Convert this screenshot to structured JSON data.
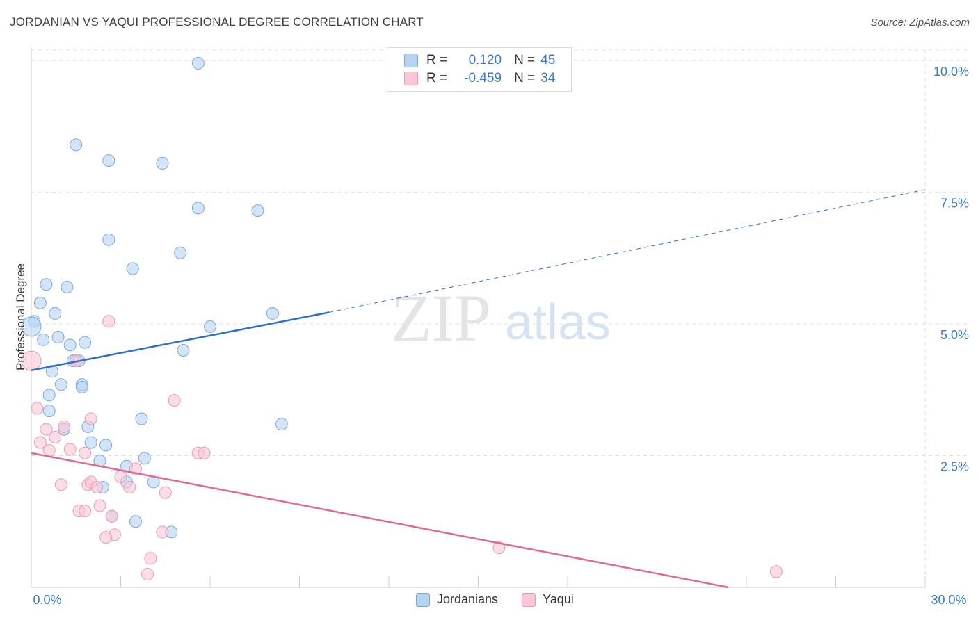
{
  "header": {
    "title": "JORDANIAN VS YAQUI PROFESSIONAL DEGREE CORRELATION CHART",
    "source": "Source: ZipAtlas.com"
  },
  "watermark": {
    "zip": "ZIP",
    "atlas": "atlas"
  },
  "legend_top": {
    "rows": [
      {
        "r_label": "R =",
        "r_value": "0.120",
        "n_label": "N =",
        "n_value": "45"
      },
      {
        "r_label": "R =",
        "r_value": "-0.459",
        "n_label": "N =",
        "n_value": "34"
      }
    ]
  },
  "legend_bottom": {
    "items": [
      "Jordanians",
      "Yaqui"
    ]
  },
  "colors": {
    "jordanian_fill": "#b8d2f1",
    "jordanian_stroke": "#7aa7dd",
    "jordanian_line": "#2f6fca",
    "yaqui_fill": "#f8c6d6",
    "yaqui_stroke": "#eb98b3",
    "yaqui_line": "#e06994",
    "tick_label": "#3a78c9",
    "grid": "#dddddd"
  },
  "chart_data": {
    "type": "scatter",
    "title": "JORDANIAN VS YAQUI PROFESSIONAL DEGREE CORRELATION CHART",
    "xlabel": "",
    "ylabel": "Professional Degree",
    "xlim": [
      0,
      30
    ],
    "ylim": [
      0,
      10.2
    ],
    "x_tick_labels": [
      "0.0%",
      "30.0%"
    ],
    "y_ticks": [
      2.5,
      5.0,
      7.5,
      10.0
    ],
    "y_tick_labels": [
      "2.5%",
      "5.0%",
      "7.5%",
      "10.0%"
    ],
    "grid": true,
    "series": [
      {
        "name": "Jordanians",
        "points": [
          [
            5.6,
            9.95
          ],
          [
            1.5,
            8.4
          ],
          [
            2.6,
            8.1
          ],
          [
            4.4,
            8.05
          ],
          [
            5.6,
            7.2
          ],
          [
            7.6,
            7.15
          ],
          [
            2.6,
            6.6
          ],
          [
            5.0,
            6.35
          ],
          [
            3.4,
            6.05
          ],
          [
            0.5,
            5.75
          ],
          [
            1.2,
            5.7
          ],
          [
            0.3,
            5.4
          ],
          [
            0.8,
            5.2
          ],
          [
            8.1,
            5.2
          ],
          [
            0.1,
            5.05
          ],
          [
            6.0,
            4.95
          ],
          [
            0.9,
            4.75
          ],
          [
            0.4,
            4.7
          ],
          [
            1.8,
            4.65
          ],
          [
            1.3,
            4.6
          ],
          [
            5.1,
            4.5
          ],
          [
            1.4,
            4.3
          ],
          [
            1.6,
            4.3
          ],
          [
            0.7,
            4.1
          ],
          [
            1.0,
            3.85
          ],
          [
            1.7,
            3.85
          ],
          [
            1.7,
            3.8
          ],
          [
            0.6,
            3.65
          ],
          [
            0.6,
            3.35
          ],
          [
            3.7,
            3.2
          ],
          [
            8.4,
            3.1
          ],
          [
            1.9,
            3.05
          ],
          [
            1.1,
            3.0
          ],
          [
            2.0,
            2.75
          ],
          [
            2.5,
            2.7
          ],
          [
            3.8,
            2.45
          ],
          [
            2.3,
            2.4
          ],
          [
            3.2,
            2.3
          ],
          [
            4.1,
            2.0
          ],
          [
            3.2,
            2.0
          ],
          [
            2.4,
            1.9
          ],
          [
            2.7,
            1.35
          ],
          [
            3.5,
            1.25
          ],
          [
            4.7,
            1.05
          ],
          [
            0.0,
            4.95
          ]
        ],
        "trend": {
          "x": [
            0,
            10
          ],
          "y": [
            4.12,
            5.22
          ],
          "dashed_extension_to": [
            30,
            7.55
          ]
        }
      },
      {
        "name": "Yaqui",
        "points": [
          [
            2.6,
            5.05
          ],
          [
            0.0,
            4.3
          ],
          [
            1.5,
            4.3
          ],
          [
            4.8,
            3.55
          ],
          [
            0.2,
            3.4
          ],
          [
            2.0,
            3.2
          ],
          [
            0.5,
            3.0
          ],
          [
            1.1,
            3.05
          ],
          [
            0.8,
            2.85
          ],
          [
            0.3,
            2.75
          ],
          [
            0.6,
            2.6
          ],
          [
            1.3,
            2.62
          ],
          [
            1.8,
            2.55
          ],
          [
            5.6,
            2.55
          ],
          [
            5.8,
            2.55
          ],
          [
            3.5,
            2.25
          ],
          [
            3.0,
            2.1
          ],
          [
            1.9,
            1.95
          ],
          [
            2.0,
            2.0
          ],
          [
            1.0,
            1.95
          ],
          [
            3.3,
            1.9
          ],
          [
            2.2,
            1.9
          ],
          [
            4.5,
            1.8
          ],
          [
            2.3,
            1.55
          ],
          [
            1.6,
            1.45
          ],
          [
            1.8,
            1.45
          ],
          [
            2.7,
            1.35
          ],
          [
            4.4,
            1.05
          ],
          [
            2.8,
            1.0
          ],
          [
            2.5,
            0.95
          ],
          [
            15.7,
            0.75
          ],
          [
            4.0,
            0.55
          ],
          [
            3.9,
            0.25
          ],
          [
            25.0,
            0.3
          ]
        ],
        "trend": {
          "x": [
            0,
            23.4
          ],
          "y": [
            2.55,
            0.0
          ]
        }
      }
    ]
  }
}
